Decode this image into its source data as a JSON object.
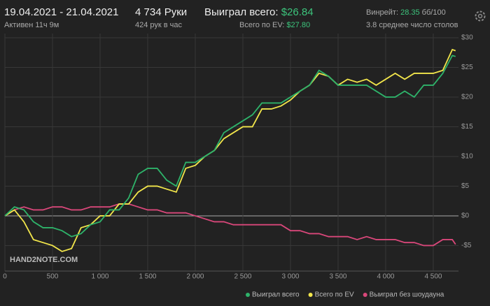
{
  "header": {
    "date_range": "19.04.2021 - 21.04.2021",
    "active_time": "Активен 11ч 9м",
    "hands": "4 734 Руки",
    "hands_per_hour": "424 рук в час",
    "won_label": "Выиграл всего:",
    "won_value": "$26.84",
    "ev_label": "Всего по EV:",
    "ev_value": "$27.80",
    "winrate_label": "Винрейт:",
    "winrate_value": "28.35",
    "winrate_unit": " бб/100",
    "tables": "3.8 среднее число столов"
  },
  "chart_data": {
    "type": "line",
    "watermark": "HAND2NOTE.COM",
    "x": [
      0,
      100,
      200,
      300,
      400,
      500,
      600,
      700,
      800,
      900,
      1000,
      1100,
      1200,
      1300,
      1400,
      1500,
      1600,
      1700,
      1800,
      1900,
      2000,
      2100,
      2200,
      2300,
      2400,
      2500,
      2600,
      2700,
      2800,
      2900,
      3000,
      3100,
      3200,
      3300,
      3400,
      3500,
      3600,
      3700,
      3800,
      3900,
      4000,
      4100,
      4200,
      4300,
      4400,
      4500,
      4600,
      4700,
      4734
    ],
    "series": [
      {
        "name": "Выиграл всего",
        "color": "#2eb36a",
        "values": [
          0,
          1.5,
          1,
          -1,
          -2,
          -2,
          -2.5,
          -3.5,
          -3,
          -1.5,
          -1,
          1,
          1,
          3,
          7,
          8,
          8,
          6,
          5,
          9,
          9,
          10,
          11,
          14,
          15,
          16,
          17,
          19,
          19,
          19,
          20,
          21,
          22,
          24.5,
          23.5,
          22,
          22,
          22,
          22,
          21,
          20,
          20,
          21,
          20,
          22,
          22,
          24,
          27,
          26.84
        ]
      },
      {
        "name": "Всего по EV",
        "color": "#f2e64b",
        "values": [
          0,
          1,
          -1,
          -4,
          -4.5,
          -5,
          -6,
          -5.5,
          -2,
          -1.5,
          0,
          0,
          2,
          2,
          4,
          5,
          5,
          4.5,
          4,
          8,
          8.5,
          10,
          11,
          13,
          14,
          15,
          15,
          18,
          18,
          18.5,
          19.5,
          21,
          22,
          24,
          23.5,
          22,
          23,
          22.5,
          23,
          22,
          23,
          24,
          23,
          24,
          24,
          24,
          24.5,
          28,
          27.8
        ]
      },
      {
        "name": "Выиграл без шоудауна",
        "color": "#d9477a",
        "values": [
          0,
          1,
          1.5,
          1,
          1,
          1.5,
          1.5,
          1,
          1,
          1.5,
          1.5,
          1.5,
          2,
          2,
          1.5,
          1,
          1,
          0.5,
          0.5,
          0.5,
          0,
          -0.5,
          -1,
          -1,
          -1.5,
          -1.5,
          -1.5,
          -1.5,
          -1.5,
          -1.5,
          -2.5,
          -2.5,
          -3,
          -3,
          -3.5,
          -3.5,
          -3.5,
          -4,
          -3.5,
          -4,
          -4,
          -4,
          -4.5,
          -4.5,
          -5,
          -5,
          -4,
          -4,
          -4.8
        ]
      }
    ],
    "xlim": [
      0,
      4765
    ],
    "xticks": [
      0,
      500,
      {
        "value": 1000,
        "label": "1 000"
      },
      {
        "value": 1500,
        "label": "1 500"
      },
      {
        "value": 2000,
        "label": "2 000"
      },
      {
        "value": 2500,
        "label": "2 500"
      },
      {
        "value": 3000,
        "label": "3 000"
      },
      {
        "value": 3500,
        "label": "3 500"
      },
      {
        "value": 4000,
        "label": "4 000"
      },
      {
        "value": 4500,
        "label": "4 500"
      }
    ],
    "ylim": [
      -9.3,
      30.7
    ],
    "yticks": [
      {
        "value": -5,
        "label": "-$5"
      },
      {
        "value": 0,
        "label": "$0"
      },
      {
        "value": 5,
        "label": "$5"
      },
      {
        "value": 10,
        "label": "$10"
      },
      {
        "value": 15,
        "label": "$15"
      },
      {
        "value": 20,
        "label": "$20"
      },
      {
        "value": 25,
        "label": "$25"
      },
      {
        "value": 30,
        "label": "$30"
      }
    ],
    "grid": true
  }
}
